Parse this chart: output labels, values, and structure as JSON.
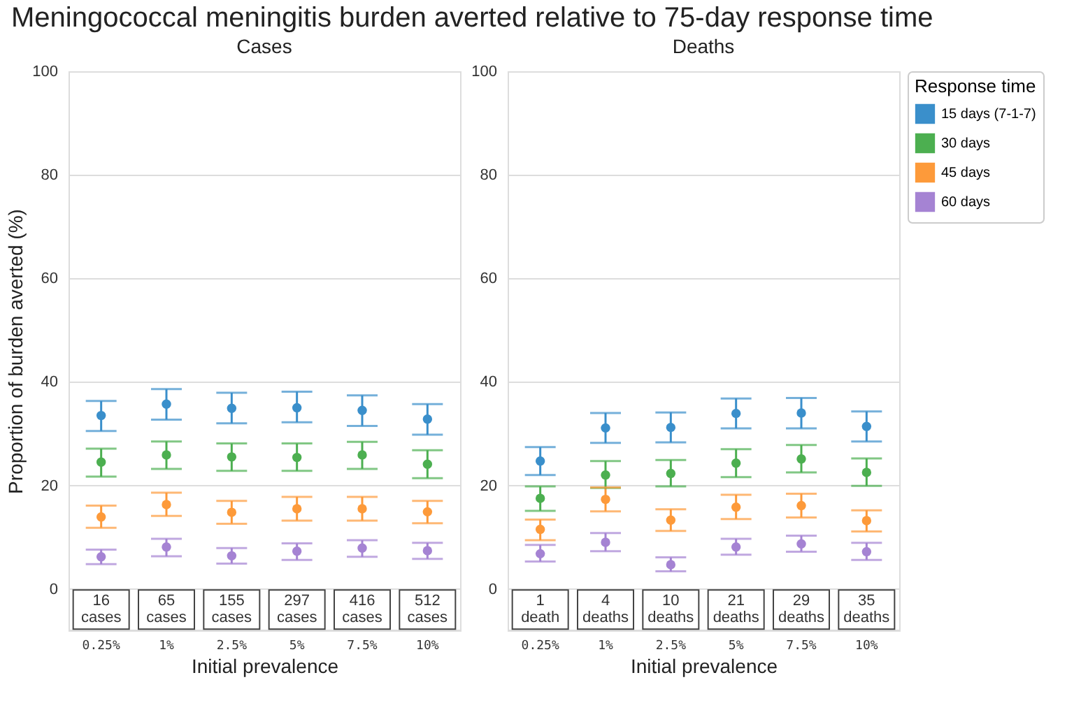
{
  "chart_data": [
    {
      "type": "scatter",
      "title": "Meningococcal meningitis burden averted relative to 75-day response time",
      "subtitle": "Cases",
      "xlabel": "Initial prevalence",
      "ylabel": "Proportion of burden averted (%)",
      "categories": [
        "0.25%",
        "1%",
        "2.5%",
        "5%",
        "7.5%",
        "10%"
      ],
      "ylim": [
        -8,
        100
      ],
      "yticks": [
        0,
        20,
        40,
        60,
        80,
        100
      ],
      "grid": "y",
      "marker": "circle",
      "legend": false,
      "series": [
        {
          "color": "#3a8fcb",
          "values": [
            33.5,
            35.7,
            34.9,
            35,
            34.5,
            32.8
          ],
          "errors": [
            [
              30.5,
              36.3
            ],
            [
              32.7,
              38.6
            ],
            [
              32,
              37.9
            ],
            [
              32.2,
              38.1
            ],
            [
              31.5,
              37.4
            ],
            [
              29.8,
              35.7
            ]
          ]
        },
        {
          "color": "#4caf50",
          "values": [
            24.5,
            25.9,
            25.5,
            25.4,
            25.9,
            24.1
          ],
          "errors": [
            [
              21.7,
              27.1
            ],
            [
              23.2,
              28.5
            ],
            [
              22.8,
              28.1
            ],
            [
              22.8,
              28.1
            ],
            [
              23.2,
              28.4
            ],
            [
              21.4,
              26.8
            ]
          ]
        },
        {
          "color": "#fd9a3a",
          "values": [
            13.9,
            16.3,
            14.8,
            15.5,
            15.5,
            14.9
          ],
          "errors": [
            [
              11.8,
              16.1
            ],
            [
              14.1,
              18.6
            ],
            [
              12.6,
              17
            ],
            [
              13.2,
              17.8
            ],
            [
              13.2,
              17.8
            ],
            [
              12.7,
              17
            ]
          ]
        },
        {
          "color": "#a583d3",
          "values": [
            6.2,
            8.1,
            6.4,
            7.3,
            7.9,
            7.4
          ],
          "errors": [
            [
              4.8,
              7.6
            ],
            [
              6.3,
              9.7
            ],
            [
              4.9,
              7.9
            ],
            [
              5.6,
              8.8
            ],
            [
              6.2,
              9.4
            ],
            [
              5.8,
              8.9
            ]
          ]
        }
      ],
      "annotations": [
        {
          "text": "16 cases",
          "x": "0.25%",
          "y": -4
        },
        {
          "text": "65 cases",
          "x": "1%",
          "y": -4
        },
        {
          "text": "155 cases",
          "x": "2.5%",
          "y": -4
        },
        {
          "text": "297 cases",
          "x": "5%",
          "y": -4
        },
        {
          "text": "416 cases",
          "x": "7.5%",
          "y": -4
        },
        {
          "text": "512 cases",
          "x": "10%",
          "y": -4
        }
      ]
    },
    {
      "type": "scatter",
      "subtitle": "Deaths",
      "xlabel": "Initial prevalence",
      "legend_title": "Response time",
      "categories": [
        "0.25%",
        "1%",
        "2.5%",
        "5%",
        "7.5%",
        "10%"
      ],
      "ylim": [
        -8,
        100
      ],
      "yticks": [
        0,
        20,
        40,
        60,
        80,
        100
      ],
      "grid": "y",
      "marker": "circle",
      "legend": "right",
      "series": [
        {
          "name": "15 days (7-1-7)",
          "color": "#3a8fcb",
          "values": [
            24.7,
            31.1,
            31.2,
            33.9,
            34,
            31.4
          ],
          "errors": [
            [
              22,
              27.4
            ],
            [
              28.2,
              34
            ],
            [
              28.3,
              34.1
            ],
            [
              31,
              36.8
            ],
            [
              31,
              36.9
            ],
            [
              28.5,
              34.3
            ]
          ]
        },
        {
          "name": "30 days",
          "color": "#4caf50",
          "values": [
            17.5,
            22,
            22.3,
            24.3,
            25.1,
            22.5
          ],
          "errors": [
            [
              15.1,
              19.8
            ],
            [
              19.5,
              24.7
            ],
            [
              19.8,
              24.9
            ],
            [
              21.6,
              27
            ],
            [
              22.5,
              27.8
            ],
            [
              19.9,
              25.2
            ]
          ]
        },
        {
          "name": "45 days",
          "color": "#fd9a3a",
          "values": [
            11.5,
            17.3,
            13.3,
            15.8,
            16.1,
            13.2
          ],
          "errors": [
            [
              9.4,
              13.4
            ],
            [
              15,
              19.6
            ],
            [
              11.2,
              15.4
            ],
            [
              13.5,
              18.2
            ],
            [
              13.8,
              18.4
            ],
            [
              11.1,
              15.2
            ]
          ]
        },
        {
          "name": "60 days",
          "color": "#a583d3",
          "values": [
            6.8,
            9,
            4.7,
            8.1,
            8.7,
            7.2
          ],
          "errors": [
            [
              5.3,
              8.5
            ],
            [
              7.3,
              10.8
            ],
            [
              3.4,
              6.1
            ],
            [
              6.6,
              9.7
            ],
            [
              7.2,
              10.3
            ],
            [
              5.6,
              8.9
            ]
          ]
        }
      ],
      "annotations": [
        {
          "text": "1 death",
          "x": "0.25%",
          "y": -4
        },
        {
          "text": "4 deaths",
          "x": "1%",
          "y": -4
        },
        {
          "text": "10 deaths",
          "x": "2.5%",
          "y": -4
        },
        {
          "text": "21 deaths",
          "x": "5%",
          "y": -4
        },
        {
          "text": "29 deaths",
          "x": "7.5%",
          "y": -4
        },
        {
          "text": "35 deaths",
          "x": "10%",
          "y": -4
        }
      ]
    }
  ]
}
